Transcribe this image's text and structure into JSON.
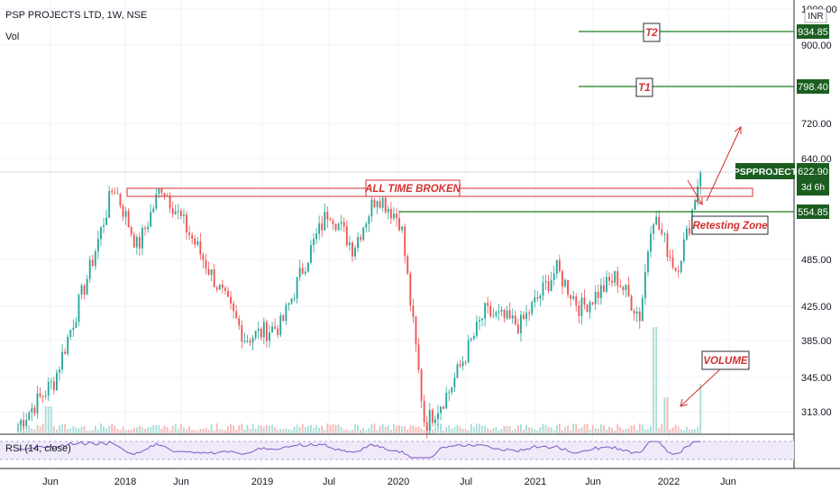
{
  "header": {
    "symbol_line": "PSP PROJECTS LTD, 1W, NSE",
    "volume_label": "Vol"
  },
  "currency": "INR",
  "rsi_label": "RSI (14, close)",
  "price_scale": {
    "ticks": [
      "1000.00",
      "900.00",
      "720.00",
      "640.00",
      "485.00",
      "425.00",
      "385.00",
      "345.00",
      "313.00"
    ],
    "badges": {
      "t2": "934.85",
      "t1": "798.40",
      "symbol": "PSPPROJECT",
      "last": "622.90",
      "countdown": "3d 6h",
      "retest": "554.85"
    }
  },
  "time_axis": [
    "Jun",
    "2018",
    "Jun",
    "2019",
    "Jul",
    "2020",
    "Jul",
    "2021",
    "Jun",
    "2022",
    "Jun"
  ],
  "annotations": {
    "all_time_broken": "ALL TIME BROKEN",
    "t2": "T2",
    "t1": "T1",
    "retesting_zone": "Retesting Zone",
    "volume": "VOLUME"
  },
  "colors": {
    "up": "#26a69a",
    "down": "#ef5350",
    "target_line": "#1b7a1b",
    "badge_green": "#1b5e20",
    "annotation_red": "#d32f2f",
    "rsi_line": "#7e57c2",
    "grid": "#e6e9ef"
  },
  "chart_data": {
    "type": "candlestick",
    "title": "PSP PROJECTS LTD, 1W, NSE",
    "x_range": [
      "2017-05",
      "2022-07"
    ],
    "y_scale": "log",
    "y_ticks": [
      313,
      345,
      385,
      425,
      485,
      640,
      720,
      900,
      1000
    ],
    "keypoints_close": [
      {
        "x": "2017-05",
        "y": 300
      },
      {
        "x": "2017-08",
        "y": 340
      },
      {
        "x": "2017-11",
        "y": 470
      },
      {
        "x": "2018-01",
        "y": 600
      },
      {
        "x": "2018-03",
        "y": 500
      },
      {
        "x": "2018-05",
        "y": 600
      },
      {
        "x": "2018-08",
        "y": 500
      },
      {
        "x": "2018-12",
        "y": 385
      },
      {
        "x": "2019-03",
        "y": 400
      },
      {
        "x": "2019-05",
        "y": 480
      },
      {
        "x": "2019-07",
        "y": 560
      },
      {
        "x": "2019-09",
        "y": 500
      },
      {
        "x": "2019-11",
        "y": 585
      },
      {
        "x": "2020-01",
        "y": 540
      },
      {
        "x": "2020-03",
        "y": 300
      },
      {
        "x": "2020-05",
        "y": 330
      },
      {
        "x": "2020-08",
        "y": 415
      },
      {
        "x": "2020-11",
        "y": 400
      },
      {
        "x": "2021-02",
        "y": 470
      },
      {
        "x": "2021-04",
        "y": 420
      },
      {
        "x": "2021-07",
        "y": 460
      },
      {
        "x": "2021-09",
        "y": 410
      },
      {
        "x": "2021-10",
        "y": 555
      },
      {
        "x": "2021-12",
        "y": 470
      },
      {
        "x": "2022-01",
        "y": 525
      },
      {
        "x": "2022-02",
        "y": 622.9
      }
    ],
    "levels": {
      "t2": 934.85,
      "t1": 798.4,
      "last_close": 622.9,
      "retest": 554.85
    }
  }
}
